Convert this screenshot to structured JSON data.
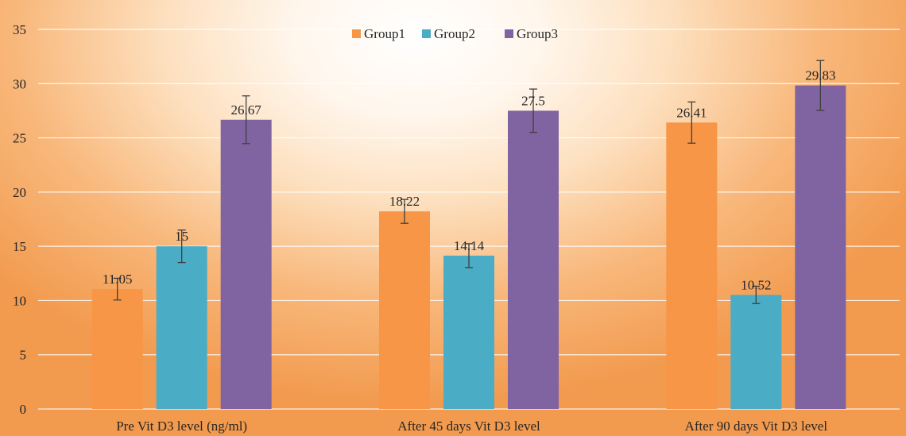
{
  "chart_data": {
    "type": "bar",
    "categories": [
      "Pre Vit D3 level (ng/ml)",
      "After 45 days Vit D3 level",
      "After 90 days Vit D3 level"
    ],
    "series": [
      {
        "name": "Group1",
        "color": "#F79646",
        "values": [
          11.05,
          18.22,
          26.41
        ],
        "labels": [
          "11.05",
          "18.22",
          "26.41"
        ],
        "errors": [
          1.0,
          1.1,
          1.9
        ]
      },
      {
        "name": "Group2",
        "color": "#4BACC6",
        "values": [
          15,
          14.14,
          10.52
        ],
        "labels": [
          "15",
          "14.14",
          "10.52"
        ],
        "errors": [
          1.5,
          1.1,
          0.8
        ]
      },
      {
        "name": "Group3",
        "color": "#8064A2",
        "values": [
          26.67,
          27.5,
          29.83
        ],
        "labels": [
          "26.67",
          "27.5",
          "29.83"
        ],
        "errors": [
          2.2,
          2.0,
          2.3
        ]
      }
    ],
    "yticks": [
      "0",
      "5",
      "10",
      "15",
      "20",
      "25",
      "30",
      "35"
    ],
    "ylim": [
      0,
      35
    ],
    "grid": true,
    "legend": "top-center",
    "error_bars": true,
    "title": "",
    "xlabel": "",
    "ylabel": ""
  }
}
